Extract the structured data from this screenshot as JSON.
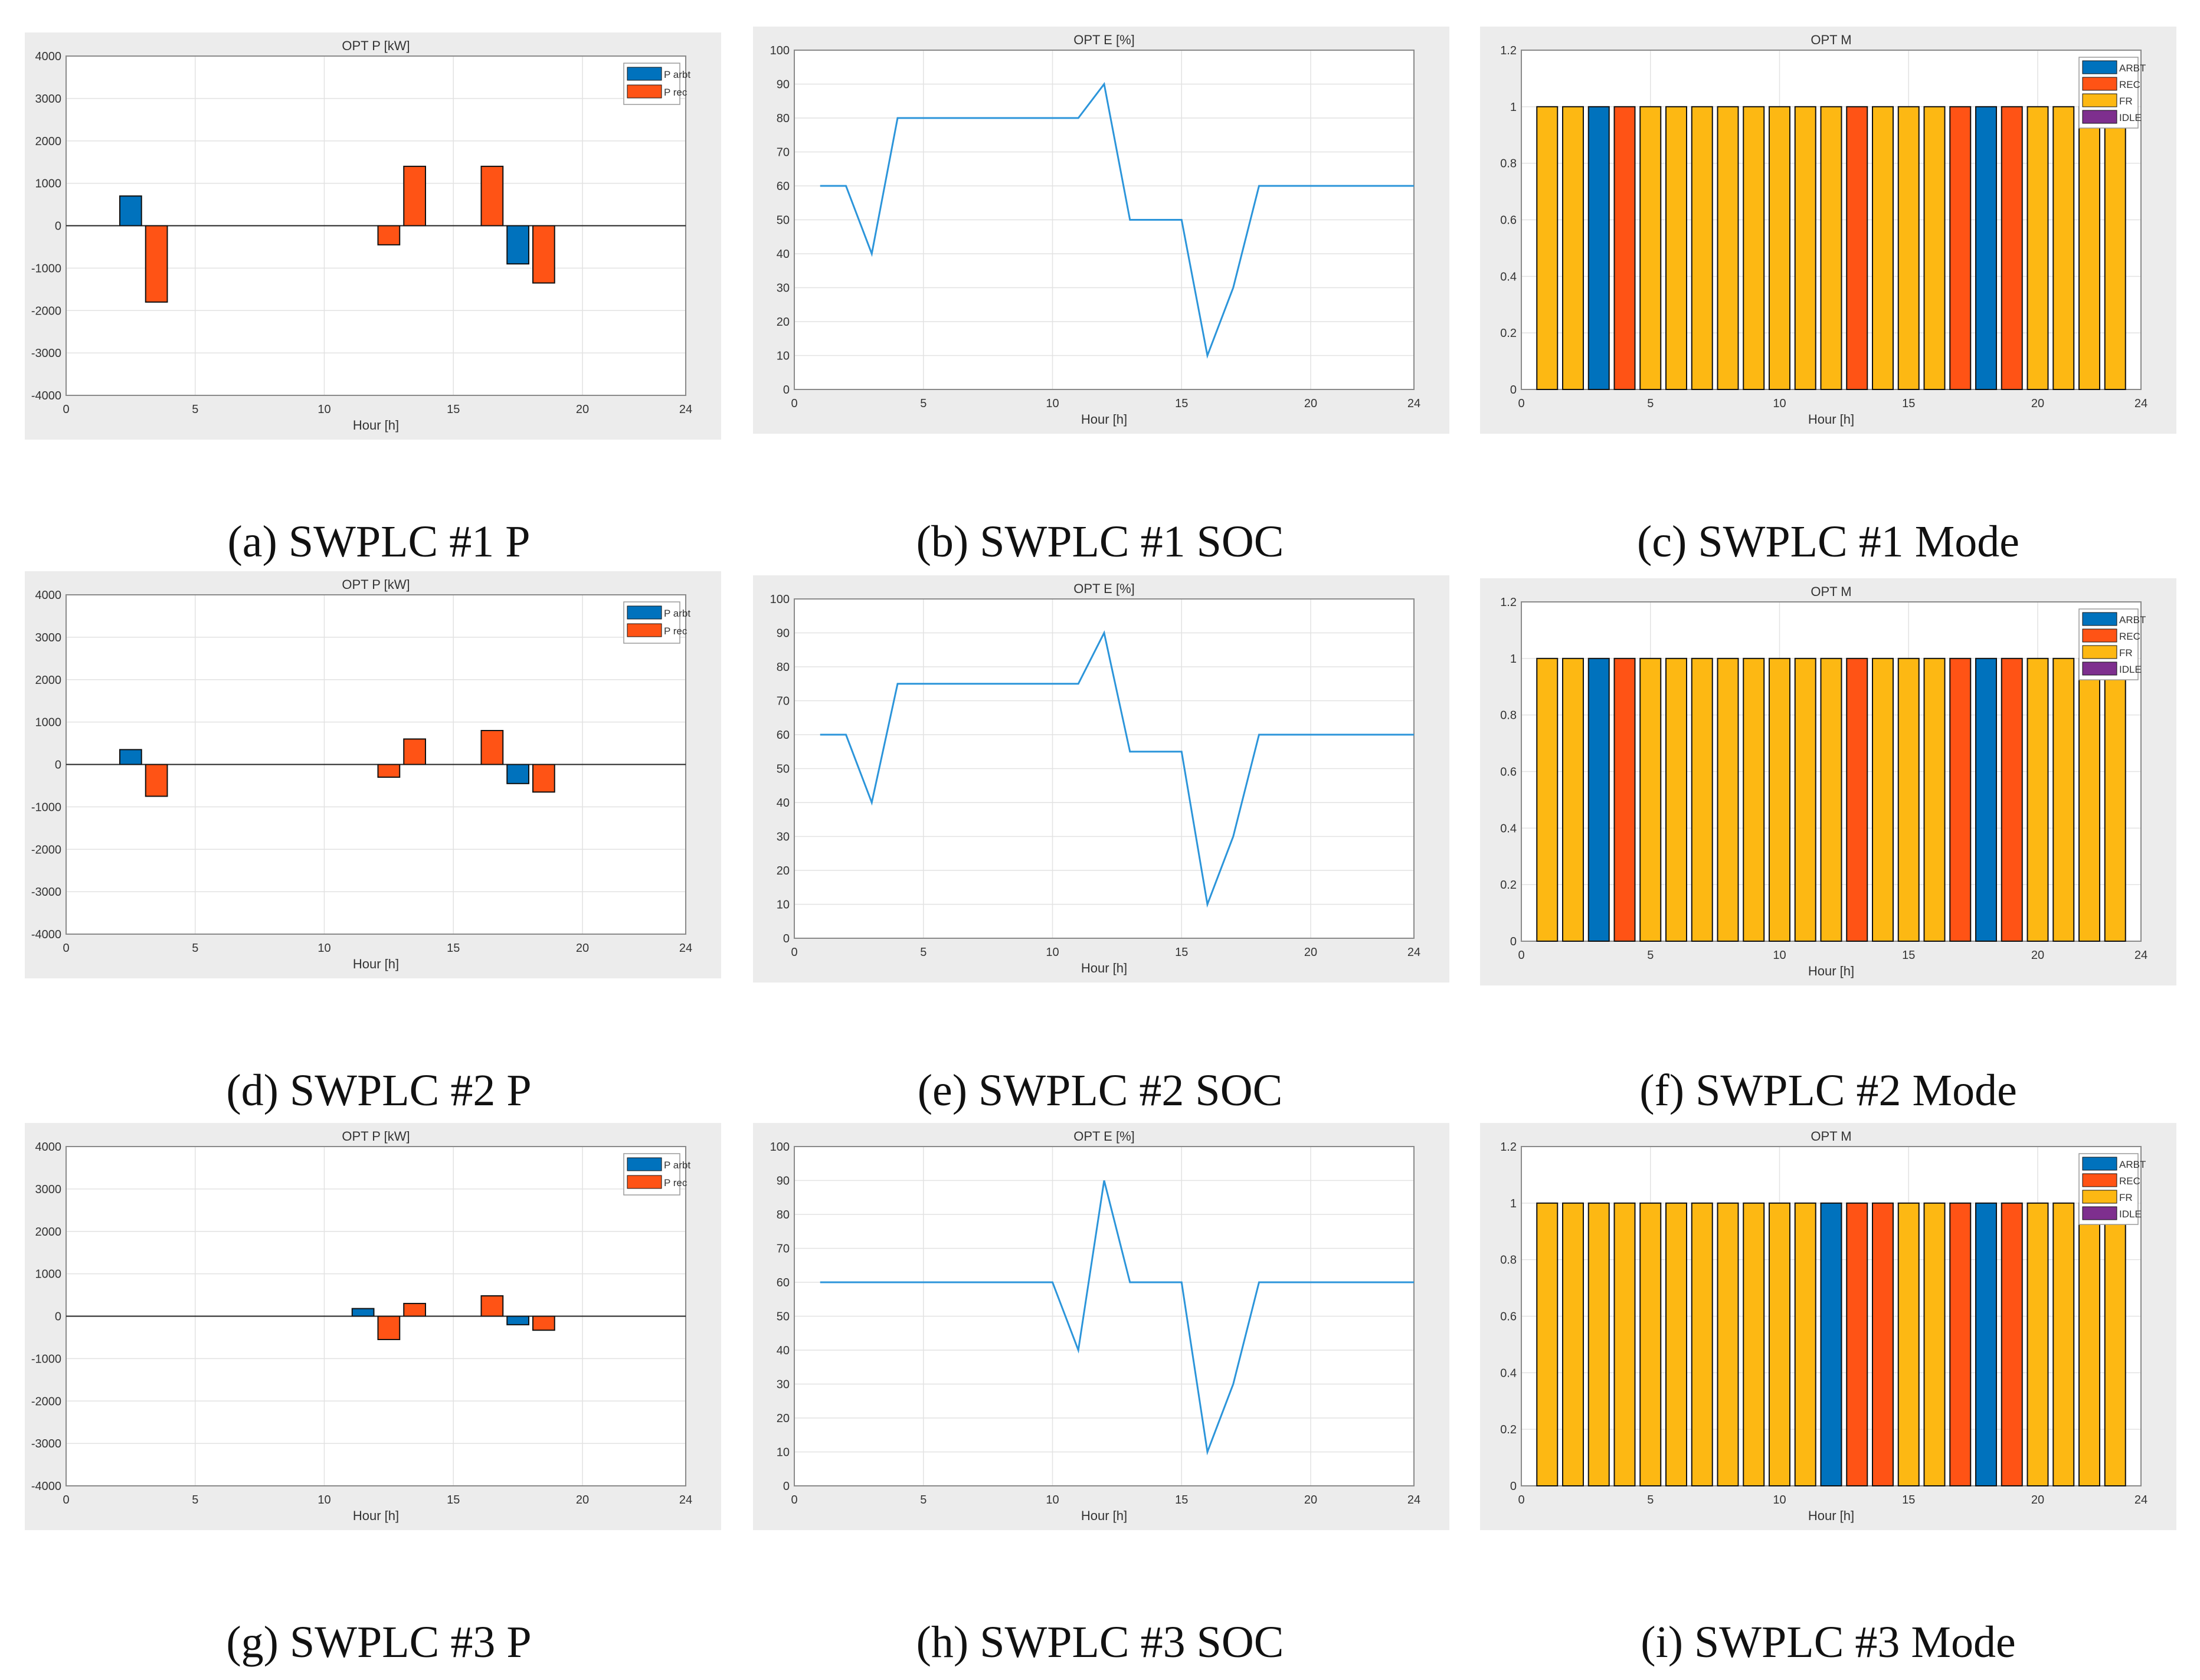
{
  "colors": {
    "arbt": "#0072BD",
    "rec": "#FF5315",
    "fr": "#FDB813",
    "idle": "#7E2F8E",
    "soc_line": "#2C95DA",
    "panel_bg": "#ECECEC"
  },
  "chart_data": [
    {
      "id": "a",
      "type": "bar",
      "caption": "(a) SWPLC #1 P",
      "title": "OPT P [kW]",
      "xlabel": "Hour [h]",
      "ylabel": "",
      "xlim": [
        0,
        24
      ],
      "ylim": [
        -4000,
        4000
      ],
      "xticks": [
        "0",
        "5",
        "10",
        "15",
        "20",
        "24"
      ],
      "yticks": [
        "-4000",
        "-3000",
        "-2000",
        "-1000",
        "0",
        "1000",
        "2000",
        "3000",
        "4000"
      ],
      "legend": [
        "P arbt",
        "P rec"
      ],
      "legend_position": "top-right",
      "series": [
        {
          "name": "P arbt",
          "x": [
            2.5,
            17.5
          ],
          "values": [
            700,
            -900
          ]
        },
        {
          "name": "P rec",
          "x": [
            3.5,
            12.5,
            13.5,
            16.5,
            18.5
          ],
          "values": [
            -1800,
            -450,
            1400,
            1400,
            -1350
          ]
        }
      ]
    },
    {
      "id": "b",
      "type": "line",
      "caption": "(b) SWPLC #1 SOC",
      "title": "OPT E [%]",
      "xlabel": "Hour [h]",
      "ylabel": "",
      "xlim": [
        0,
        24
      ],
      "ylim": [
        0,
        100
      ],
      "xticks": [
        "0",
        "5",
        "10",
        "15",
        "20",
        "24"
      ],
      "yticks": [
        "0",
        "10",
        "20",
        "30",
        "40",
        "50",
        "60",
        "70",
        "80",
        "90",
        "100"
      ],
      "x": [
        1,
        2,
        3,
        4,
        5,
        6,
        7,
        8,
        9,
        10,
        11,
        12,
        13,
        14,
        15,
        16,
        17,
        18,
        19,
        20,
        21,
        22,
        23,
        24
      ],
      "values": [
        60,
        60,
        40,
        80,
        80,
        80,
        80,
        80,
        80,
        80,
        80,
        90,
        50,
        50,
        50,
        10,
        30,
        60,
        60,
        60,
        60,
        60,
        60,
        60
      ]
    },
    {
      "id": "c",
      "type": "bar",
      "caption": "(c) SWPLC #1 Mode",
      "title": "OPT M",
      "xlabel": "Hour [h]",
      "ylabel": "",
      "xlim": [
        0,
        24
      ],
      "ylim": [
        0,
        1.2
      ],
      "xticks": [
        "0",
        "5",
        "10",
        "15",
        "20",
        "24"
      ],
      "yticks": [
        "0",
        "0.2",
        "0.4",
        "0.6",
        "0.8",
        "1",
        "1.2"
      ],
      "legend": [
        "ARBT",
        "REC",
        "FR",
        "IDLE"
      ],
      "legend_position": "top-right",
      "categories": [
        1,
        2,
        3,
        4,
        5,
        6,
        7,
        8,
        9,
        10,
        11,
        12,
        13,
        14,
        15,
        16,
        17,
        18,
        19,
        20,
        21,
        22,
        23
      ],
      "values": [
        1,
        1,
        1,
        1,
        1,
        1,
        1,
        1,
        1,
        1,
        1,
        1,
        1,
        1,
        1,
        1,
        1,
        1,
        1,
        1,
        1,
        1,
        1
      ],
      "modes": [
        "FR",
        "FR",
        "ARBT",
        "REC",
        "FR",
        "FR",
        "FR",
        "FR",
        "FR",
        "FR",
        "FR",
        "FR",
        "REC",
        "FR",
        "FR",
        "FR",
        "REC",
        "ARBT",
        "REC",
        "FR",
        "FR",
        "FR",
        "FR"
      ]
    },
    {
      "id": "d",
      "type": "bar",
      "caption": "(d) SWPLC #2 P",
      "title": "OPT P [kW]",
      "xlabel": "Hour [h]",
      "ylabel": "",
      "xlim": [
        0,
        24
      ],
      "ylim": [
        -4000,
        4000
      ],
      "xticks": [
        "0",
        "5",
        "10",
        "15",
        "20",
        "24"
      ],
      "yticks": [
        "-4000",
        "-3000",
        "-2000",
        "-1000",
        "0",
        "1000",
        "2000",
        "3000",
        "4000"
      ],
      "legend": [
        "P arbt",
        "P rec"
      ],
      "legend_position": "top-right",
      "series": [
        {
          "name": "P arbt",
          "x": [
            2.5,
            17.5
          ],
          "values": [
            350,
            -450
          ]
        },
        {
          "name": "P rec",
          "x": [
            3.5,
            12.5,
            13.5,
            16.5,
            18.5
          ],
          "values": [
            -750,
            -300,
            600,
            800,
            -650
          ]
        }
      ]
    },
    {
      "id": "e",
      "type": "line",
      "caption": "(e) SWPLC #2 SOC",
      "title": "OPT E [%]",
      "xlabel": "Hour [h]",
      "ylabel": "",
      "xlim": [
        0,
        24
      ],
      "ylim": [
        0,
        100
      ],
      "xticks": [
        "0",
        "5",
        "10",
        "15",
        "20",
        "24"
      ],
      "yticks": [
        "0",
        "10",
        "20",
        "30",
        "40",
        "50",
        "60",
        "70",
        "80",
        "90",
        "100"
      ],
      "x": [
        1,
        2,
        3,
        4,
        5,
        6,
        7,
        8,
        9,
        10,
        11,
        12,
        13,
        14,
        15,
        16,
        17,
        18,
        19,
        20,
        21,
        22,
        23,
        24
      ],
      "values": [
        60,
        60,
        40,
        75,
        75,
        75,
        75,
        75,
        75,
        75,
        75,
        90,
        55,
        55,
        55,
        10,
        30,
        60,
        60,
        60,
        60,
        60,
        60,
        60
      ]
    },
    {
      "id": "f",
      "type": "bar",
      "caption": "(f) SWPLC #2 Mode",
      "title": "OPT M",
      "xlabel": "Hour [h]",
      "ylabel": "",
      "xlim": [
        0,
        24
      ],
      "ylim": [
        0,
        1.2
      ],
      "xticks": [
        "0",
        "5",
        "10",
        "15",
        "20",
        "24"
      ],
      "yticks": [
        "0",
        "0.2",
        "0.4",
        "0.6",
        "0.8",
        "1",
        "1.2"
      ],
      "legend": [
        "ARBT",
        "REC",
        "FR",
        "IDLE"
      ],
      "legend_position": "top-right",
      "categories": [
        1,
        2,
        3,
        4,
        5,
        6,
        7,
        8,
        9,
        10,
        11,
        12,
        13,
        14,
        15,
        16,
        17,
        18,
        19,
        20,
        21,
        22,
        23
      ],
      "values": [
        1,
        1,
        1,
        1,
        1,
        1,
        1,
        1,
        1,
        1,
        1,
        1,
        1,
        1,
        1,
        1,
        1,
        1,
        1,
        1,
        1,
        1,
        1
      ],
      "modes": [
        "FR",
        "FR",
        "ARBT",
        "REC",
        "FR",
        "FR",
        "FR",
        "FR",
        "FR",
        "FR",
        "FR",
        "FR",
        "REC",
        "FR",
        "FR",
        "FR",
        "REC",
        "ARBT",
        "REC",
        "FR",
        "FR",
        "FR",
        "FR"
      ]
    },
    {
      "id": "g",
      "type": "bar",
      "caption": "(g) SWPLC #3 P",
      "title": "OPT P [kW]",
      "xlabel": "Hour [h]",
      "ylabel": "",
      "xlim": [
        0,
        24
      ],
      "ylim": [
        -4000,
        4000
      ],
      "xticks": [
        "0",
        "5",
        "10",
        "15",
        "20",
        "24"
      ],
      "yticks": [
        "-4000",
        "-3000",
        "-2000",
        "-1000",
        "0",
        "1000",
        "2000",
        "3000",
        "4000"
      ],
      "legend": [
        "P arbt",
        "P rec"
      ],
      "legend_position": "top-right",
      "series": [
        {
          "name": "P arbt",
          "x": [
            11.5,
            17.5
          ],
          "values": [
            180,
            -200
          ]
        },
        {
          "name": "P rec",
          "x": [
            12.5,
            13.5,
            16.5,
            18.5
          ],
          "values": [
            -550,
            300,
            480,
            -330
          ]
        }
      ]
    },
    {
      "id": "h",
      "type": "line",
      "caption": "(h) SWPLC #3 SOC",
      "title": "OPT E [%]",
      "xlabel": "Hour [h]",
      "ylabel": "",
      "xlim": [
        0,
        24
      ],
      "ylim": [
        0,
        100
      ],
      "xticks": [
        "0",
        "5",
        "10",
        "15",
        "20",
        "24"
      ],
      "yticks": [
        "0",
        "10",
        "20",
        "30",
        "40",
        "50",
        "60",
        "70",
        "80",
        "90",
        "100"
      ],
      "x": [
        1,
        2,
        3,
        4,
        5,
        6,
        7,
        8,
        9,
        10,
        11,
        12,
        13,
        14,
        15,
        16,
        17,
        18,
        19,
        20,
        21,
        22,
        23,
        24
      ],
      "values": [
        60,
        60,
        60,
        60,
        60,
        60,
        60,
        60,
        60,
        60,
        40,
        90,
        60,
        60,
        60,
        10,
        30,
        60,
        60,
        60,
        60,
        60,
        60,
        60
      ]
    },
    {
      "id": "i",
      "type": "bar",
      "caption": "(i) SWPLC #3 Mode",
      "title": "OPT M",
      "xlabel": "Hour [h]",
      "ylabel": "",
      "xlim": [
        0,
        24
      ],
      "ylim": [
        0,
        1.2
      ],
      "xticks": [
        "0",
        "5",
        "10",
        "15",
        "20",
        "24"
      ],
      "yticks": [
        "0",
        "0.2",
        "0.4",
        "0.6",
        "0.8",
        "1",
        "1.2"
      ],
      "legend": [
        "ARBT",
        "REC",
        "FR",
        "IDLE"
      ],
      "legend_position": "top-right",
      "categories": [
        1,
        2,
        3,
        4,
        5,
        6,
        7,
        8,
        9,
        10,
        11,
        12,
        13,
        14,
        15,
        16,
        17,
        18,
        19,
        20,
        21,
        22,
        23
      ],
      "values": [
        1,
        1,
        1,
        1,
        1,
        1,
        1,
        1,
        1,
        1,
        1,
        1,
        1,
        1,
        1,
        1,
        1,
        1,
        1,
        1,
        1,
        1,
        1
      ],
      "modes": [
        "FR",
        "FR",
        "FR",
        "FR",
        "FR",
        "FR",
        "FR",
        "FR",
        "FR",
        "FR",
        "FR",
        "ARBT",
        "REC",
        "REC",
        "FR",
        "FR",
        "REC",
        "ARBT",
        "REC",
        "FR",
        "FR",
        "FR",
        "FR"
      ]
    }
  ]
}
